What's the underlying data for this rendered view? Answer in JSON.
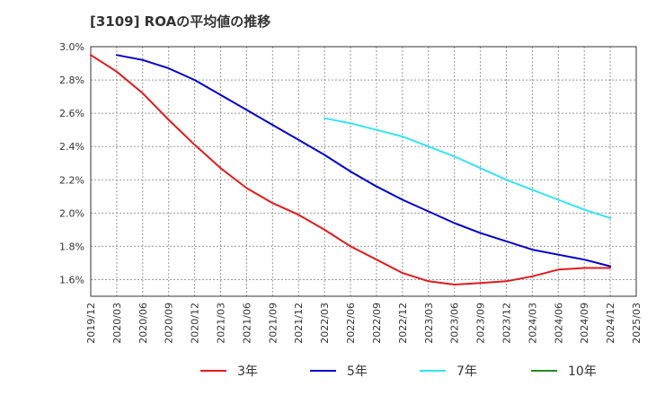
{
  "chart_data": {
    "type": "line",
    "title": "[3109]  ROAの平均値の推移",
    "xlabel": "",
    "ylabel": "",
    "grid": true,
    "legend_position": "bottom",
    "x_ticks": [
      "2019/12",
      "2020/03",
      "2020/06",
      "2020/09",
      "2020/12",
      "2021/03",
      "2021/06",
      "2021/09",
      "2021/12",
      "2022/03",
      "2022/06",
      "2022/09",
      "2022/12",
      "2023/03",
      "2023/06",
      "2023/09",
      "2023/12",
      "2024/03",
      "2024/06",
      "2024/09",
      "2024/12",
      "2025/03"
    ],
    "y_ticks": [
      "1.6%",
      "1.8%",
      "2.0%",
      "2.2%",
      "2.4%",
      "2.6%",
      "2.8%",
      "3.0%"
    ],
    "ylim": [
      1.5,
      3.0
    ],
    "y_unit": "%",
    "series": [
      {
        "name": "3年",
        "color": "#e31a1c",
        "x": [
          "2019/12",
          "2020/03",
          "2020/06",
          "2020/09",
          "2020/12",
          "2021/03",
          "2021/06",
          "2021/09",
          "2021/12",
          "2022/03",
          "2022/06",
          "2022/09",
          "2022/12",
          "2023/03",
          "2023/06",
          "2023/09",
          "2023/12",
          "2024/03",
          "2024/06",
          "2024/09",
          "2024/12"
        ],
        "values": [
          2.95,
          2.85,
          2.72,
          2.56,
          2.41,
          2.27,
          2.15,
          2.06,
          1.99,
          1.9,
          1.8,
          1.72,
          1.64,
          1.59,
          1.57,
          1.58,
          1.59,
          1.62,
          1.66,
          1.67,
          1.67
        ]
      },
      {
        "name": "5年",
        "color": "#0000cc",
        "x": [
          "2020/03",
          "2020/06",
          "2020/09",
          "2020/12",
          "2021/03",
          "2021/06",
          "2021/09",
          "2021/12",
          "2022/03",
          "2022/06",
          "2022/09",
          "2022/12",
          "2023/03",
          "2023/06",
          "2023/09",
          "2023/12",
          "2024/03",
          "2024/06",
          "2024/09",
          "2024/12"
        ],
        "values": [
          2.95,
          2.92,
          2.87,
          2.8,
          2.71,
          2.62,
          2.53,
          2.44,
          2.35,
          2.25,
          2.16,
          2.08,
          2.01,
          1.94,
          1.88,
          1.83,
          1.78,
          1.75,
          1.72,
          1.68
        ]
      },
      {
        "name": "7年",
        "color": "#33e5f0",
        "x": [
          "2022/03",
          "2022/06",
          "2022/09",
          "2022/12",
          "2023/03",
          "2023/06",
          "2023/09",
          "2023/12",
          "2024/03",
          "2024/06",
          "2024/09",
          "2024/12"
        ],
        "values": [
          2.57,
          2.54,
          2.5,
          2.46,
          2.4,
          2.34,
          2.27,
          2.2,
          2.14,
          2.08,
          2.02,
          1.97
        ]
      },
      {
        "name": "10年",
        "color": "#228b22",
        "x": [],
        "values": []
      }
    ]
  }
}
